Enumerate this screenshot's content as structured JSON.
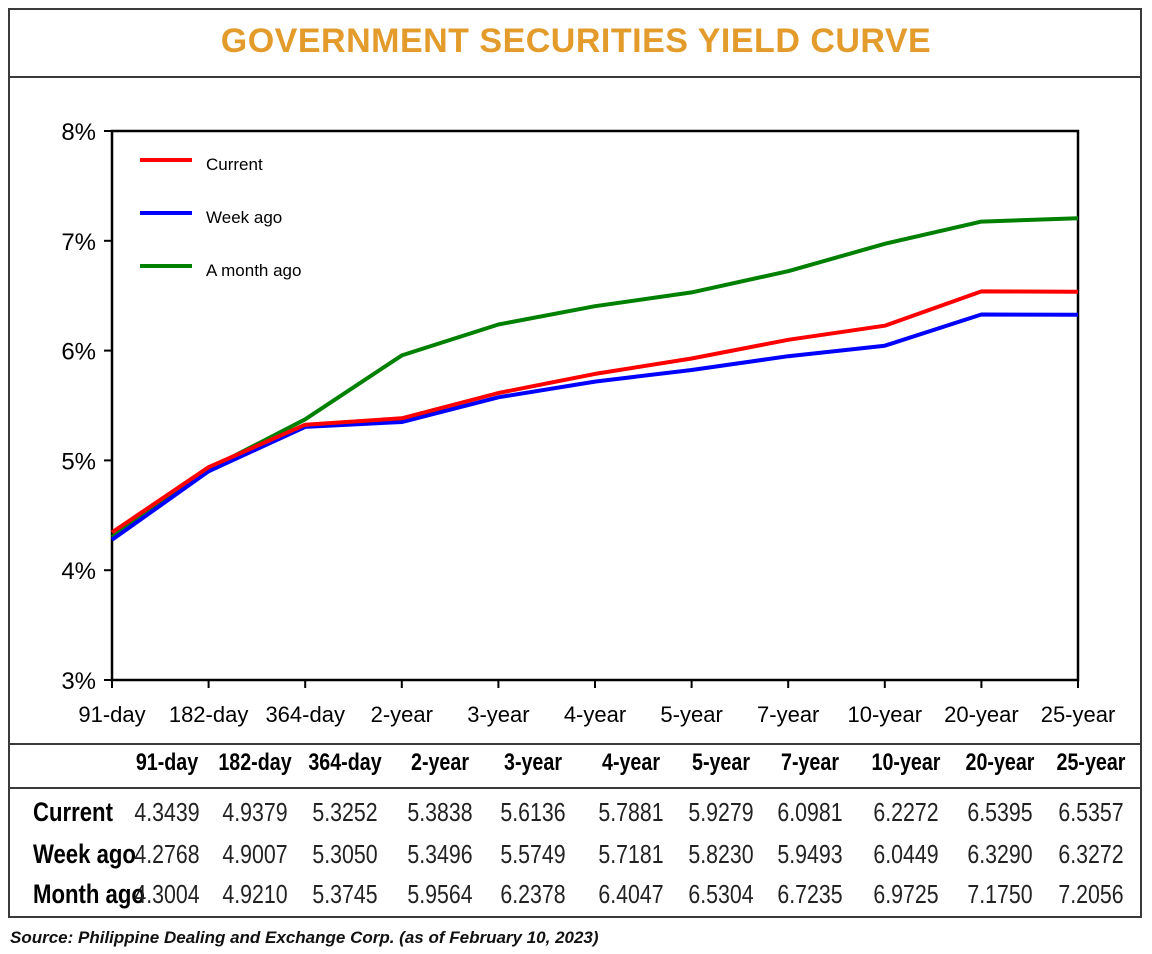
{
  "title": "GOVERNMENT SECURITIES YIELD CURVE",
  "source": "Source: Philippine Dealing and Exchange Corp. (as of February 10, 2023)",
  "colors": {
    "title": "#E39B2B",
    "current": "#FF0000",
    "week_ago": "#0000FF",
    "month_ago": "#008000"
  },
  "chart_data": {
    "type": "line",
    "categories": [
      "91-day",
      "182-day",
      "364-day",
      "2-year",
      "3-year",
      "4-year",
      "5-year",
      "7-year",
      "10-year",
      "20-year",
      "25-year"
    ],
    "ylim": [
      3,
      8
    ],
    "yticks": [
      "3%",
      "4%",
      "5%",
      "6%",
      "7%",
      "8%"
    ],
    "legend_position": "top-left",
    "grid": false,
    "series": [
      {
        "name": "Current",
        "color": "#FF0000",
        "values": [
          4.3439,
          4.9379,
          5.3252,
          5.3838,
          5.6136,
          5.7881,
          5.9279,
          6.0981,
          6.2272,
          6.5395,
          6.5357
        ]
      },
      {
        "name": "Week ago",
        "color": "#0000FF",
        "values": [
          4.2768,
          4.9007,
          5.305,
          5.3496,
          5.5749,
          5.7181,
          5.823,
          5.9493,
          6.0449,
          6.329,
          6.3272
        ]
      },
      {
        "name": "A month ago",
        "color": "#008000",
        "values": [
          4.3004,
          4.921,
          5.3745,
          5.9564,
          6.2378,
          6.4047,
          6.5304,
          6.7235,
          6.9725,
          7.175,
          7.2056
        ]
      }
    ]
  },
  "table": {
    "headers": [
      "91-day",
      "182-day",
      "364-day",
      "2-year",
      "3-year",
      "4-year",
      "5-year",
      "7-year",
      "10-year",
      "20-year",
      "25-year"
    ],
    "rows": [
      {
        "label": "Current",
        "values": [
          "4.3439",
          "4.9379",
          "5.3252",
          "5.3838",
          "5.6136",
          "5.7881",
          "5.9279",
          "6.0981",
          "6.2272",
          "6.5395",
          "6.5357"
        ]
      },
      {
        "label": "Week ago",
        "values": [
          "4.2768",
          "4.9007",
          "5.3050",
          "5.3496",
          "5.5749",
          "5.7181",
          "5.8230",
          "5.9493",
          "6.0449",
          "6.3290",
          "6.3272"
        ]
      },
      {
        "label": "Month ago",
        "values": [
          "4.3004",
          "4.9210",
          "5.3745",
          "5.9564",
          "6.2378",
          "6.4047",
          "6.5304",
          "6.7235",
          "6.9725",
          "7.1750",
          "7.2056"
        ]
      }
    ]
  }
}
